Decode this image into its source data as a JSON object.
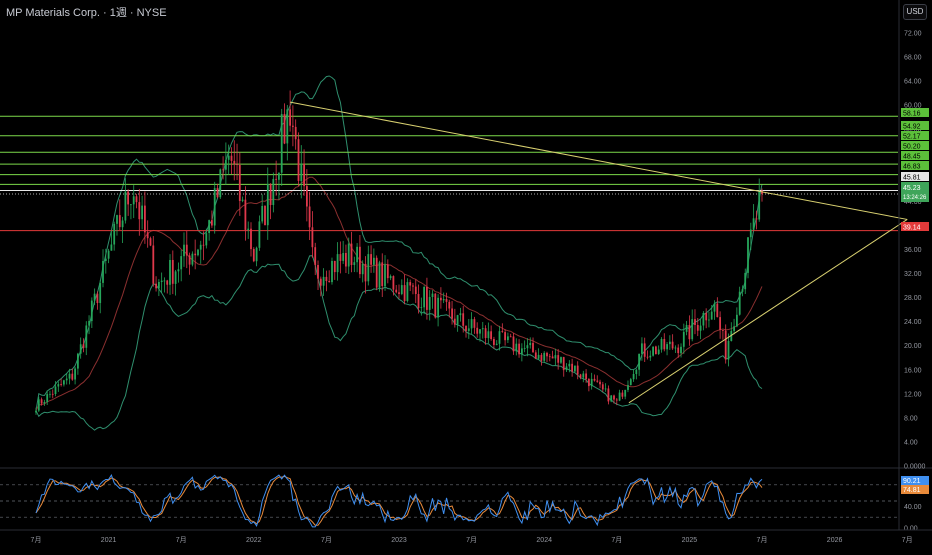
{
  "header": {
    "title": "MP Materials Corp. · 1週 · NYSE",
    "currency": "USD"
  },
  "colors": {
    "up": "#26a65b",
    "down": "#e0384b",
    "bb": "#2f8f6e",
    "basis": "#8a2f2f",
    "hline": "#7cd94a",
    "trend": "#d8d070",
    "red_line": "#e23a3a",
    "k_line": "#3f8ff0",
    "d_line": "#e88a3a"
  },
  "chart_data": [
    {
      "type": "line",
      "title": "MP Materials Corp. · 1週 · NYSE",
      "xlabel": "",
      "ylabel": "USD",
      "ylim": [
        0,
        74
      ],
      "x_ticks": [
        "7月",
        "2021",
        "7月",
        "2022",
        "7月",
        "2023",
        "7月",
        "2024",
        "7月",
        "2025",
        "7月",
        "2026",
        "7月"
      ],
      "y_ticks": [
        "72.00",
        "68.00",
        "64.00",
        "60.00",
        "56.00",
        "52.00",
        "48.00",
        "44.00",
        "40.00",
        "36.00",
        "32.00",
        "28.00",
        "24.00",
        "20.00",
        "16.00",
        "12.00",
        "8.00",
        "4.00",
        "0.0000"
      ],
      "price_path_x": [
        "2020-07",
        "2020-10",
        "2021-01",
        "2021-03",
        "2021-05",
        "2021-09",
        "2021-11",
        "2022-01",
        "2022-04",
        "2022-06",
        "2022-09",
        "2022-12",
        "2023-03",
        "2023-06",
        "2023-09",
        "2023-12",
        "2024-03",
        "2024-07",
        "2024-09",
        "2024-12",
        "2025-03",
        "2025-04",
        "2025-06",
        "2025-07"
      ],
      "price_path_y": [
        10,
        15,
        35,
        47,
        30,
        38,
        52,
        35,
        60,
        32,
        35,
        31,
        28,
        24,
        21,
        19,
        17,
        10.5,
        19,
        20,
        27,
        19,
        37,
        45.2
      ],
      "horizontal_levels": [
        58.16,
        54.92,
        52.17,
        50.2,
        48.45,
        46.83,
        45.81
      ],
      "red_level": 39.14,
      "last_price": 45.23,
      "countdown": "13:24:26",
      "trendlines": [
        {
          "from": [
            "2022-04",
            60.5
          ],
          "to": [
            "2026-07",
            41
          ]
        },
        {
          "from": [
            "2024-08",
            10.5
          ],
          "to": [
            "2026-07",
            41
          ]
        }
      ],
      "labels": [
        {
          "value": "58.16",
          "kind": "level"
        },
        {
          "value": "54.92",
          "kind": "level"
        },
        {
          "value": "52.17",
          "kind": "level"
        },
        {
          "value": "50.20",
          "kind": "level"
        },
        {
          "value": "48.45",
          "kind": "level"
        },
        {
          "value": "46.83",
          "kind": "level"
        },
        {
          "value": "45.81",
          "kind": "level-white"
        },
        {
          "value": "45.23",
          "kind": "last",
          "extra": "13:24:26"
        },
        {
          "value": "39.14",
          "kind": "red"
        }
      ],
      "grid": false
    },
    {
      "type": "line",
      "title": "",
      "ylim": [
        0,
        100
      ],
      "y_ticks": [
        "40.00",
        "0.00"
      ],
      "guide_levels": [
        80,
        50,
        20
      ],
      "series": [
        {
          "values": [
            90.21
          ]
        },
        {
          "values": [
            74.81
          ]
        }
      ],
      "k_value": "90.21",
      "d_value": "74.81"
    }
  ]
}
